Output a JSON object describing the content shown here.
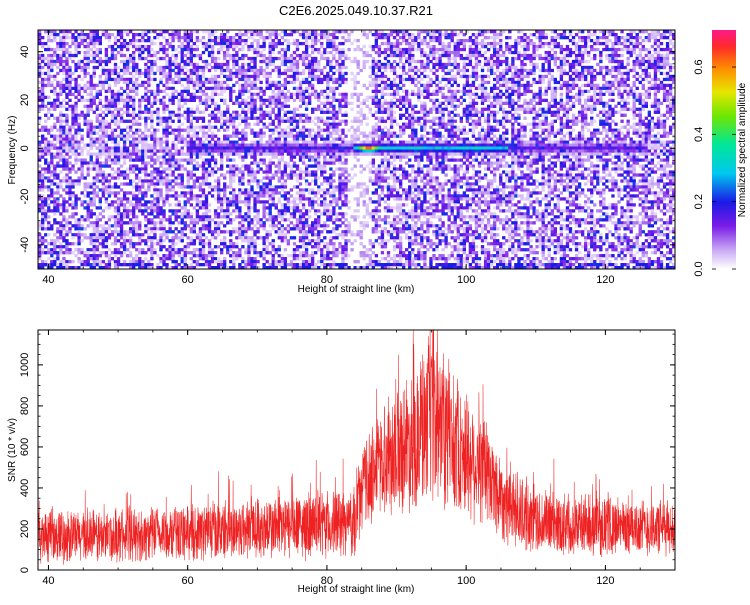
{
  "title": "C2E6.2025.049.10.37.R21",
  "chart_data": [
    {
      "type": "heatmap",
      "xlabel": "Height of straight line (km)",
      "ylabel": "Frequency (Hz)",
      "xlim": [
        38.5,
        130
      ],
      "ylim": [
        -50,
        49
      ],
      "x_ticks": [
        "40",
        "60",
        "80",
        "100",
        "120"
      ],
      "y_ticks": [
        "-40",
        "-20",
        "0",
        "20",
        "40"
      ],
      "colorbar": {
        "label": "Normalized spectral amplitude",
        "range": [
          0,
          0.71
        ],
        "ticks": [
          "0.0",
          "0.2",
          "0.4",
          "0.6"
        ]
      },
      "features": [
        {
          "description_free": true,
          "frequency": 0,
          "x_start": 84,
          "x_end": 106,
          "peak_x": 86,
          "peak_value": 0.71
        }
      ],
      "grid": false
    },
    {
      "type": "line",
      "xlabel": "Height of straight line (km)",
      "ylabel": "SNR (10 * v/v)",
      "xlim": [
        38.5,
        130
      ],
      "ylim": [
        0,
        1170
      ],
      "x_ticks": [
        "40",
        "60",
        "80",
        "100",
        "120"
      ],
      "y_ticks": [
        "0",
        "200",
        "400",
        "600",
        "800",
        "1000"
      ],
      "color": "#ee2222",
      "envelope": {
        "x": [
          38.5,
          50,
          60,
          70,
          80,
          84,
          85,
          88,
          92,
          95,
          98,
          102,
          106,
          110,
          120,
          130
        ],
        "base": [
          150,
          150,
          170,
          190,
          200,
          220,
          380,
          520,
          600,
          680,
          600,
          480,
          300,
          220,
          200,
          190
        ],
        "amp": [
          140,
          140,
          150,
          170,
          180,
          180,
          240,
          300,
          380,
          480,
          380,
          320,
          220,
          180,
          160,
          150
        ]
      },
      "peak": {
        "x": 95.3,
        "y": 1170
      },
      "grid": false
    }
  ]
}
